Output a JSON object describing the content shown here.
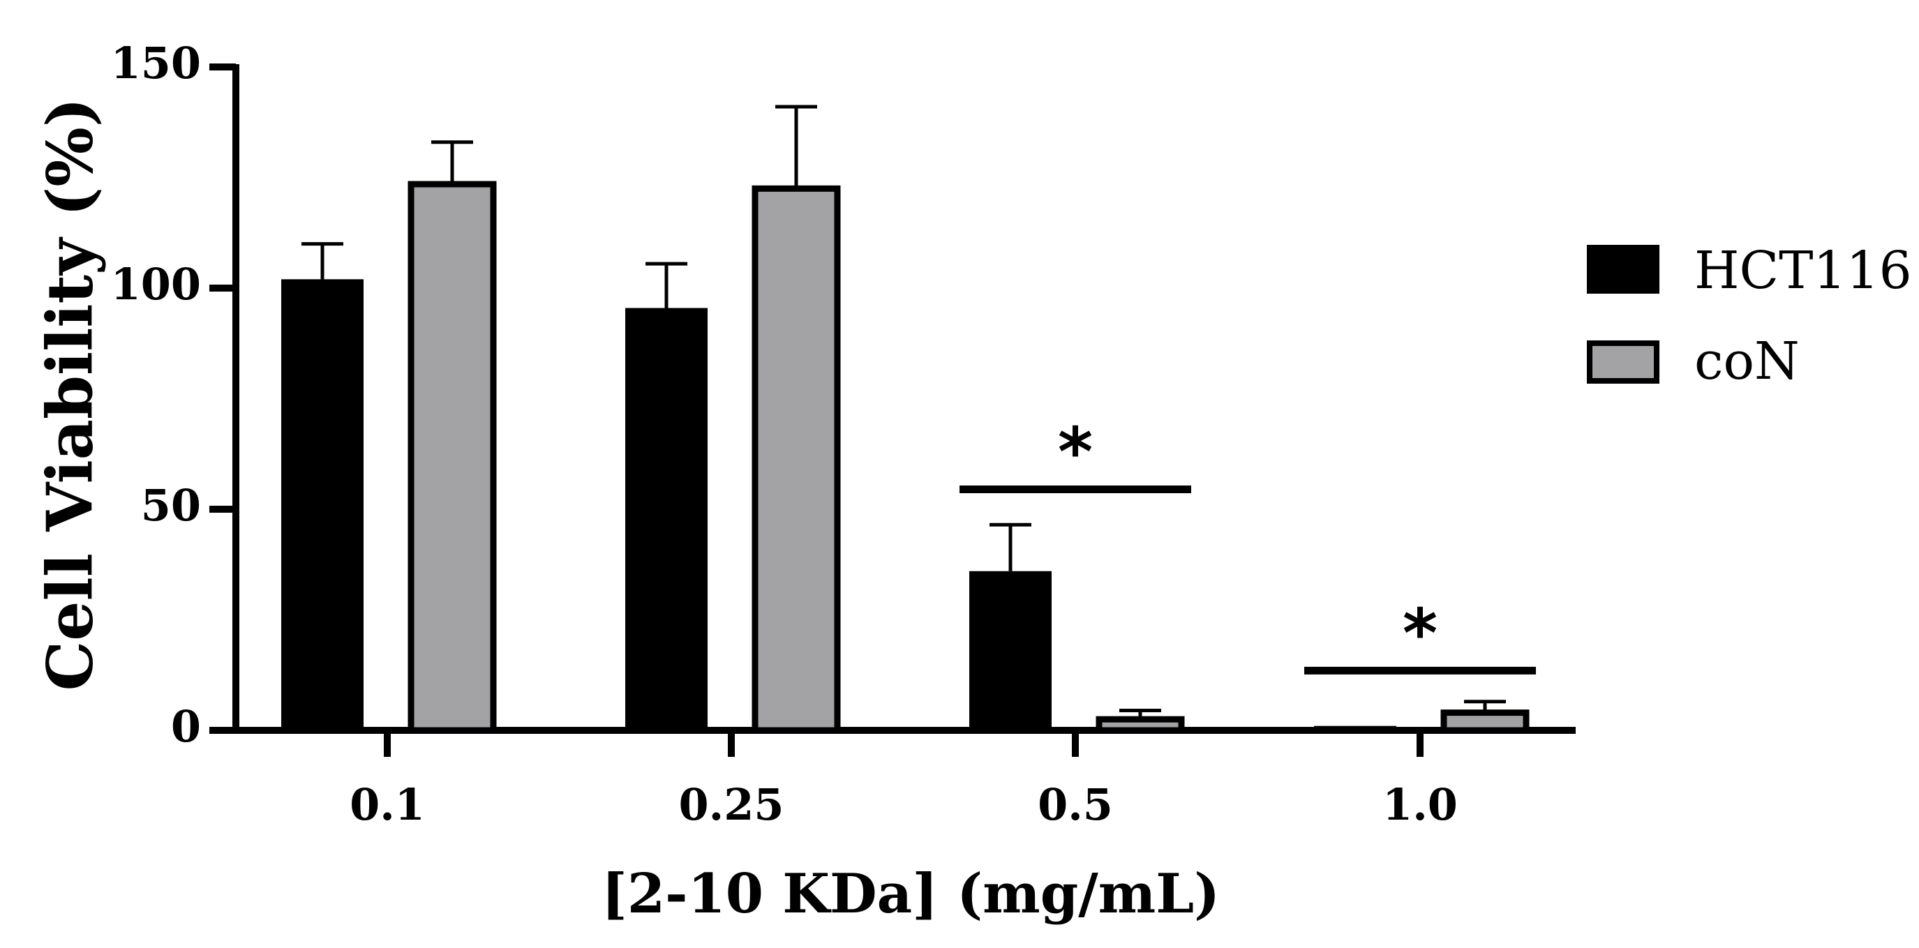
{
  "chart_data": {
    "type": "bar",
    "title": "",
    "xlabel": "[2-10 KDa] (mg/mL)",
    "ylabel": "Cell Viability (%)",
    "ylim": [
      0,
      150
    ],
    "yticks": [
      "0",
      "50",
      "100",
      "150"
    ],
    "categories": [
      "0.1",
      "0.25",
      "0.5",
      "1.0"
    ],
    "series": [
      {
        "name": "HCT116",
        "color": "#000000",
        "values": [
          102,
          95.5,
          36,
          1
        ],
        "errors": [
          8,
          10,
          10.5,
          0
        ]
      },
      {
        "name": "coN",
        "color": "#a3a3a5",
        "values": [
          123.5,
          122.5,
          2.5,
          4
        ],
        "errors": [
          9.5,
          18.5,
          2,
          2.5
        ]
      }
    ],
    "significance": [
      {
        "category": "0.5",
        "label": "*",
        "level": 54.5
      },
      {
        "category": "1.0",
        "label": "*",
        "level": 13.5
      }
    ],
    "legend_position": "right"
  }
}
